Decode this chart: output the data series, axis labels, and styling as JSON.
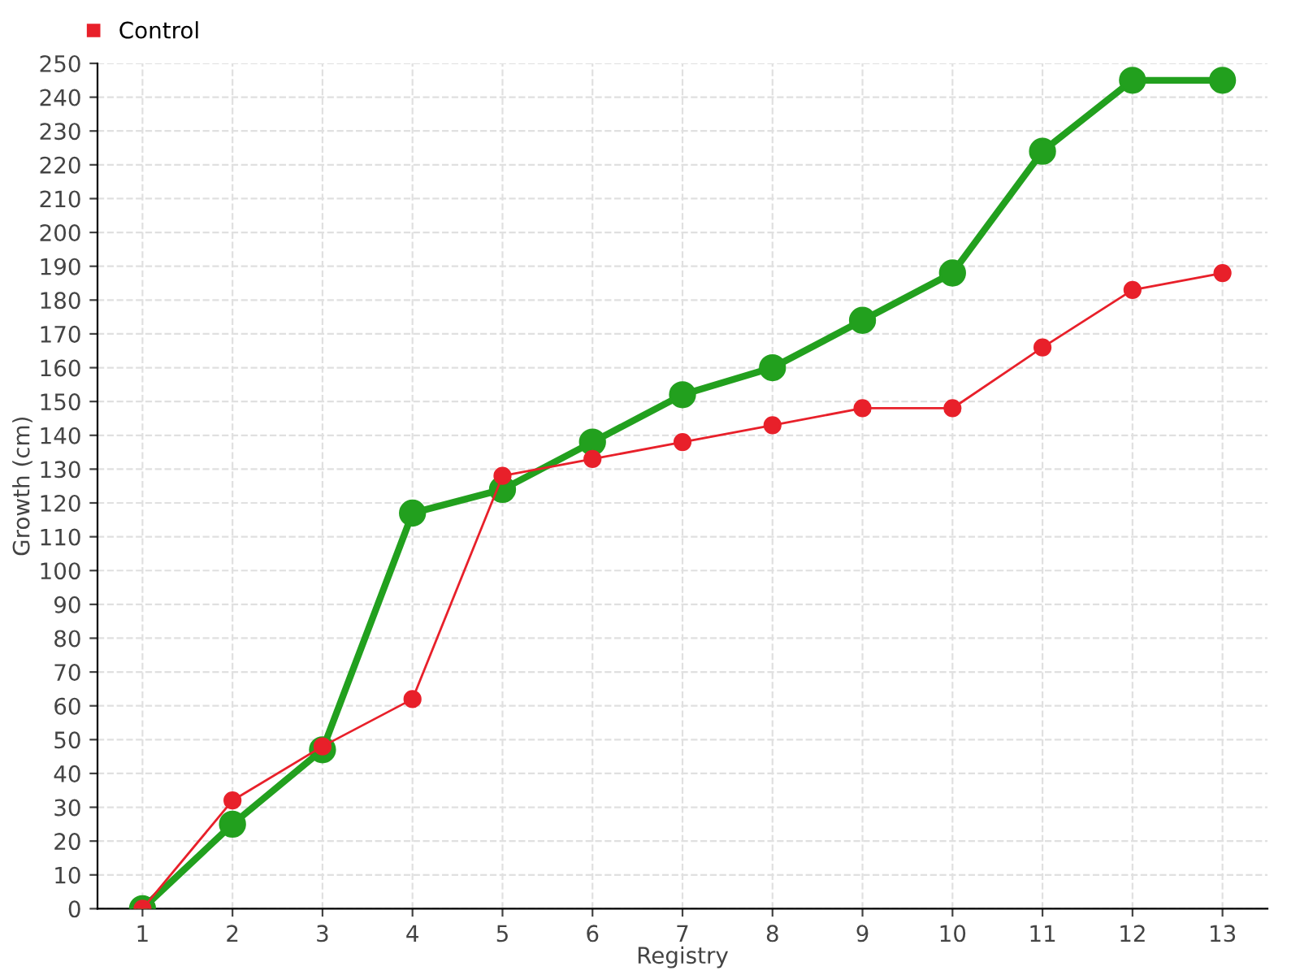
{
  "chart_data": {
    "type": "line",
    "xlabel": "Registry",
    "ylabel": "Growth (cm)",
    "categories": [
      "1",
      "2",
      "3",
      "4",
      "5",
      "6",
      "7",
      "8",
      "9",
      "10",
      "11",
      "12",
      "13"
    ],
    "series": [
      {
        "color": "#22a01e",
        "values": [
          0,
          25,
          47,
          117,
          124,
          138,
          152,
          160,
          174,
          188,
          224,
          245,
          245
        ]
      },
      {
        "name": "Control",
        "color": "#e8202a",
        "values": [
          0,
          32,
          48,
          62,
          128,
          133,
          138,
          143,
          148,
          148,
          166,
          183,
          188
        ]
      }
    ],
    "ylim": [
      0,
      250
    ],
    "yticks": [
      0,
      10,
      20,
      30,
      40,
      50,
      60,
      70,
      80,
      90,
      100,
      110,
      120,
      130,
      140,
      150,
      160,
      170,
      180,
      190,
      200,
      210,
      220,
      230,
      240,
      250
    ],
    "grid": true,
    "legend": "top left",
    "marker": "circle",
    "line_style": "solid"
  }
}
